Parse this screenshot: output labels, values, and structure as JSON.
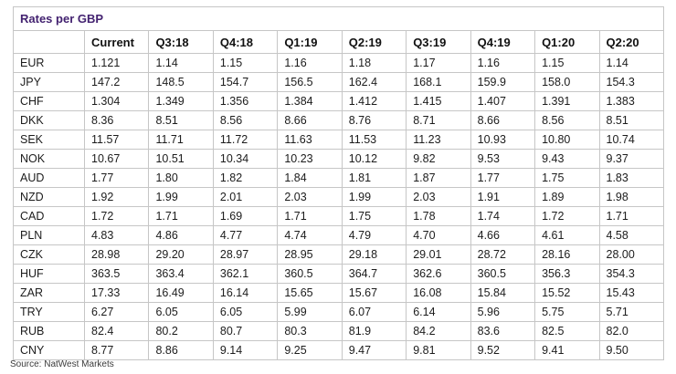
{
  "title": "Rates per GBP",
  "source": "Source: NatWest Markets",
  "colors": {
    "title_purple": "#432270",
    "border_gray": "#c6c6c6",
    "text": "#1c1c1c"
  },
  "table": {
    "columns": [
      "",
      "Current",
      "Q3:18",
      "Q4:18",
      "Q1:19",
      "Q2:19",
      "Q3:19",
      "Q4:19",
      "Q1:20",
      "Q2:20"
    ],
    "rows": [
      {
        "currency": "EUR",
        "values": [
          "1.121",
          "1.14",
          "1.15",
          "1.16",
          "1.18",
          "1.17",
          "1.16",
          "1.15",
          "1.14"
        ]
      },
      {
        "currency": "JPY",
        "values": [
          "147.2",
          "148.5",
          "154.7",
          "156.5",
          "162.4",
          "168.1",
          "159.9",
          "158.0",
          "154.3"
        ]
      },
      {
        "currency": "CHF",
        "values": [
          "1.304",
          "1.349",
          "1.356",
          "1.384",
          "1.412",
          "1.415",
          "1.407",
          "1.391",
          "1.383"
        ]
      },
      {
        "currency": "DKK",
        "values": [
          "8.36",
          "8.51",
          "8.56",
          "8.66",
          "8.76",
          "8.71",
          "8.66",
          "8.56",
          "8.51"
        ]
      },
      {
        "currency": "SEK",
        "values": [
          "11.57",
          "11.71",
          "11.72",
          "11.63",
          "11.53",
          "11.23",
          "10.93",
          "10.80",
          "10.74"
        ]
      },
      {
        "currency": "NOK",
        "values": [
          "10.67",
          "10.51",
          "10.34",
          "10.23",
          "10.12",
          "9.82",
          "9.53",
          "9.43",
          "9.37"
        ]
      },
      {
        "currency": "AUD",
        "values": [
          "1.77",
          "1.80",
          "1.82",
          "1.84",
          "1.81",
          "1.87",
          "1.77",
          "1.75",
          "1.83"
        ]
      },
      {
        "currency": "NZD",
        "values": [
          "1.92",
          "1.99",
          "2.01",
          "2.03",
          "1.99",
          "2.03",
          "1.91",
          "1.89",
          "1.98"
        ]
      },
      {
        "currency": "CAD",
        "values": [
          "1.72",
          "1.71",
          "1.69",
          "1.71",
          "1.75",
          "1.78",
          "1.74",
          "1.72",
          "1.71"
        ]
      },
      {
        "currency": "PLN",
        "values": [
          "4.83",
          "4.86",
          "4.77",
          "4.74",
          "4.79",
          "4.70",
          "4.66",
          "4.61",
          "4.58"
        ]
      },
      {
        "currency": "CZK",
        "values": [
          "28.98",
          "29.20",
          "28.97",
          "28.95",
          "29.18",
          "29.01",
          "28.72",
          "28.16",
          "28.00"
        ]
      },
      {
        "currency": "HUF",
        "values": [
          "363.5",
          "363.4",
          "362.1",
          "360.5",
          "364.7",
          "362.6",
          "360.5",
          "356.3",
          "354.3"
        ]
      },
      {
        "currency": "ZAR",
        "values": [
          "17.33",
          "16.49",
          "16.14",
          "15.65",
          "15.67",
          "16.08",
          "15.84",
          "15.52",
          "15.43"
        ]
      },
      {
        "currency": "TRY",
        "values": [
          "6.27",
          "6.05",
          "6.05",
          "5.99",
          "6.07",
          "6.14",
          "5.96",
          "5.75",
          "5.71"
        ]
      },
      {
        "currency": "RUB",
        "values": [
          "82.4",
          "80.2",
          "80.7",
          "80.3",
          "81.9",
          "84.2",
          "83.6",
          "82.5",
          "82.0"
        ]
      },
      {
        "currency": "CNY",
        "values": [
          "8.77",
          "8.86",
          "9.14",
          "9.25",
          "9.47",
          "9.81",
          "9.52",
          "9.41",
          "9.50"
        ]
      }
    ]
  },
  "chart_data": {
    "type": "table",
    "title": "Rates per GBP",
    "source": "Source: NatWest Markets",
    "categories": [
      "Current",
      "Q3:18",
      "Q4:18",
      "Q1:19",
      "Q2:19",
      "Q3:19",
      "Q4:19",
      "Q1:20",
      "Q2:20"
    ],
    "series": [
      {
        "name": "EUR",
        "values": [
          1.121,
          1.14,
          1.15,
          1.16,
          1.18,
          1.17,
          1.16,
          1.15,
          1.14
        ]
      },
      {
        "name": "JPY",
        "values": [
          147.2,
          148.5,
          154.7,
          156.5,
          162.4,
          168.1,
          159.9,
          158.0,
          154.3
        ]
      },
      {
        "name": "CHF",
        "values": [
          1.304,
          1.349,
          1.356,
          1.384,
          1.412,
          1.415,
          1.407,
          1.391,
          1.383
        ]
      },
      {
        "name": "DKK",
        "values": [
          8.36,
          8.51,
          8.56,
          8.66,
          8.76,
          8.71,
          8.66,
          8.56,
          8.51
        ]
      },
      {
        "name": "SEK",
        "values": [
          11.57,
          11.71,
          11.72,
          11.63,
          11.53,
          11.23,
          10.93,
          10.8,
          10.74
        ]
      },
      {
        "name": "NOK",
        "values": [
          10.67,
          10.51,
          10.34,
          10.23,
          10.12,
          9.82,
          9.53,
          9.43,
          9.37
        ]
      },
      {
        "name": "AUD",
        "values": [
          1.77,
          1.8,
          1.82,
          1.84,
          1.81,
          1.87,
          1.77,
          1.75,
          1.83
        ]
      },
      {
        "name": "NZD",
        "values": [
          1.92,
          1.99,
          2.01,
          2.03,
          1.99,
          2.03,
          1.91,
          1.89,
          1.98
        ]
      },
      {
        "name": "CAD",
        "values": [
          1.72,
          1.71,
          1.69,
          1.71,
          1.75,
          1.78,
          1.74,
          1.72,
          1.71
        ]
      },
      {
        "name": "PLN",
        "values": [
          4.83,
          4.86,
          4.77,
          4.74,
          4.79,
          4.7,
          4.66,
          4.61,
          4.58
        ]
      },
      {
        "name": "CZK",
        "values": [
          28.98,
          29.2,
          28.97,
          28.95,
          29.18,
          29.01,
          28.72,
          28.16,
          28.0
        ]
      },
      {
        "name": "HUF",
        "values": [
          363.5,
          363.4,
          362.1,
          360.5,
          364.7,
          362.6,
          360.5,
          356.3,
          354.3
        ]
      },
      {
        "name": "ZAR",
        "values": [
          17.33,
          16.49,
          16.14,
          15.65,
          15.67,
          16.08,
          15.84,
          15.52,
          15.43
        ]
      },
      {
        "name": "TRY",
        "values": [
          6.27,
          6.05,
          6.05,
          5.99,
          6.07,
          6.14,
          5.96,
          5.75,
          5.71
        ]
      },
      {
        "name": "RUB",
        "values": [
          82.4,
          80.2,
          80.7,
          80.3,
          81.9,
          84.2,
          83.6,
          82.5,
          82.0
        ]
      },
      {
        "name": "CNY",
        "values": [
          8.77,
          8.86,
          9.14,
          9.25,
          9.47,
          9.81,
          9.52,
          9.41,
          9.5
        ]
      }
    ]
  }
}
